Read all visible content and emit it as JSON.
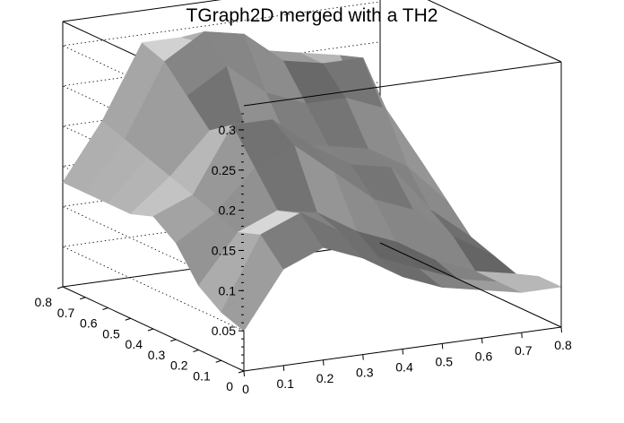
{
  "chart_data": {
    "type": "surface3d",
    "title": "TGraph2D merged with a TH2",
    "xlabel": "",
    "ylabel": "",
    "zlabel": "",
    "xlim": [
      0,
      0.8
    ],
    "ylim": [
      0,
      0.8
    ],
    "zlim": [
      0,
      0.33
    ],
    "x_ticks": [
      "0",
      "0.1",
      "0.2",
      "0.3",
      "0.4",
      "0.5",
      "0.6",
      "0.7",
      "0.8"
    ],
    "y_ticks": [
      "0",
      "0.1",
      "0.2",
      "0.3",
      "0.4",
      "0.5",
      "0.6",
      "0.7",
      "0.8"
    ],
    "z_ticks": [
      "0.05",
      "0.1",
      "0.15",
      "0.2",
      "0.25",
      "0.3"
    ],
    "grid": true,
    "surface_color": "#bdbdbd",
    "surface": {
      "x": [
        0,
        0.1,
        0.2,
        0.3,
        0.4,
        0.5,
        0.6,
        0.7,
        0.8
      ],
      "y": [
        0,
        0.1,
        0.2,
        0.3,
        0.4,
        0.5,
        0.6,
        0.7,
        0.8
      ],
      "z": [
        [
          0.05,
          0.12,
          0.14,
          0.12,
          0.09,
          0.07,
          0.06,
          0.05,
          0.05
        ],
        [
          0.06,
          0.15,
          0.17,
          0.14,
          0.1,
          0.08,
          0.06,
          0.05,
          0.05
        ],
        [
          0.08,
          0.14,
          0.16,
          0.15,
          0.12,
          0.1,
          0.07,
          0.05,
          0.04
        ],
        [
          0.12,
          0.15,
          0.2,
          0.22,
          0.18,
          0.14,
          0.12,
          0.08,
          0.05
        ],
        [
          0.14,
          0.16,
          0.24,
          0.24,
          0.2,
          0.17,
          0.16,
          0.1,
          0.06
        ],
        [
          0.13,
          0.17,
          0.22,
          0.2,
          0.19,
          0.18,
          0.17,
          0.14,
          0.09
        ],
        [
          0.13,
          0.18,
          0.25,
          0.28,
          0.24,
          0.22,
          0.22,
          0.2,
          0.12
        ],
        [
          0.13,
          0.19,
          0.28,
          0.31,
          0.3,
          0.26,
          0.25,
          0.25,
          0.12
        ],
        [
          0.13,
          0.2,
          0.29,
          0.29,
          0.27,
          0.26,
          0.25,
          0.24,
          0.12
        ]
      ]
    }
  }
}
